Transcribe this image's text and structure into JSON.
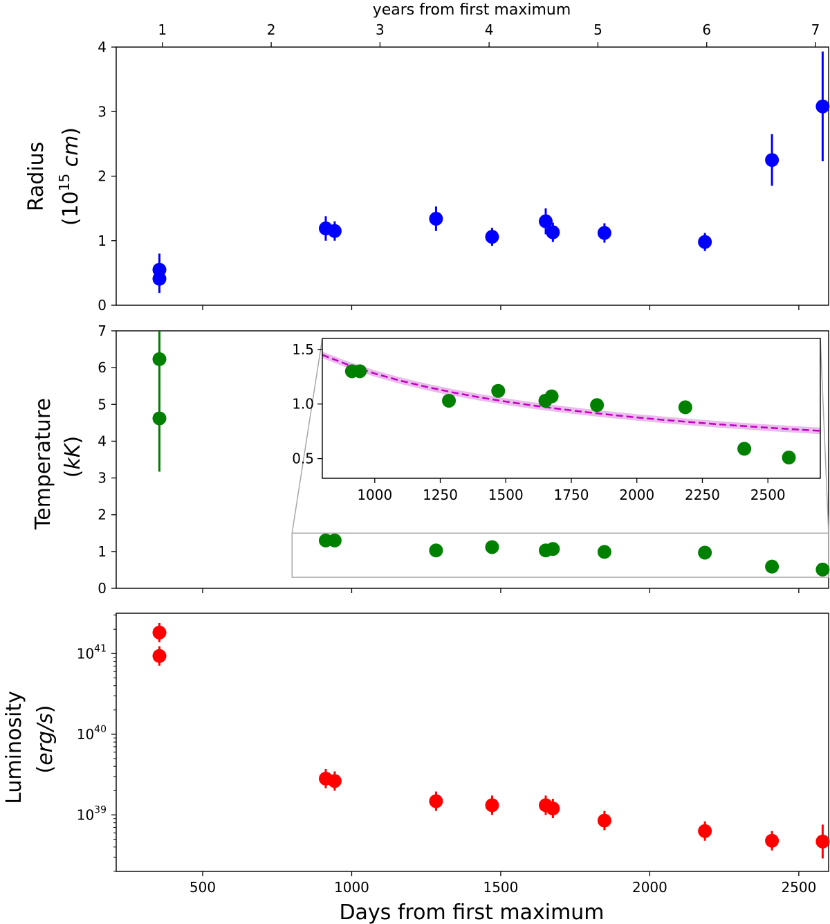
{
  "chart_data": [
    {
      "id": "radius",
      "type": "scatter",
      "ylabel_line1": "Radius",
      "ylabel_line2_prefix": "(10",
      "ylabel_line2_exp": "15",
      "ylabel_line2_unit": "cm",
      "ylabel_line2_suffix": ")",
      "ylim": [
        0,
        4
      ],
      "yticks": [
        0,
        1,
        2,
        3,
        4
      ],
      "ytick_labels": [
        "0",
        "1",
        "2",
        "3",
        "4"
      ],
      "color": "#0000ff",
      "points": [
        {
          "x": 355,
          "y": 0.55,
          "yerr": 0.25
        },
        {
          "x": 355,
          "y": 0.41,
          "yerr": 0.22
        },
        {
          "x": 913,
          "y": 1.19,
          "yerr": 0.19
        },
        {
          "x": 943,
          "y": 1.15,
          "yerr": 0.15
        },
        {
          "x": 1283,
          "y": 1.34,
          "yerr": 0.19
        },
        {
          "x": 1471,
          "y": 1.06,
          "yerr": 0.14
        },
        {
          "x": 1651,
          "y": 1.3,
          "yerr": 0.2
        },
        {
          "x": 1675,
          "y": 1.13,
          "yerr": 0.15
        },
        {
          "x": 1848,
          "y": 1.12,
          "yerr": 0.15
        },
        {
          "x": 2185,
          "y": 0.98,
          "yerr": 0.14
        },
        {
          "x": 2410,
          "y": 2.25,
          "yerr": 0.4
        },
        {
          "x": 2580,
          "y": 3.08,
          "yerr": 0.85
        }
      ]
    },
    {
      "id": "temperature",
      "type": "scatter",
      "ylabel_line1": "Temperature",
      "ylabel_line2_prefix": "(",
      "ylabel_line2_unit": "kK",
      "ylabel_line2_suffix": ")",
      "ylim": [
        0,
        7
      ],
      "yticks": [
        0,
        1,
        2,
        3,
        4,
        5,
        6,
        7
      ],
      "ytick_labels": [
        "0",
        "1",
        "2",
        "3",
        "4",
        "5",
        "6",
        "7"
      ],
      "color": "#008000",
      "points": [
        {
          "x": 355,
          "y": 6.23,
          "yerr": 0.9
        },
        {
          "x": 355,
          "y": 4.62,
          "yerr": 1.45
        },
        {
          "x": 913,
          "y": 1.3,
          "yerr": 0
        },
        {
          "x": 943,
          "y": 1.3,
          "yerr": 0
        },
        {
          "x": 1283,
          "y": 1.03,
          "yerr": 0
        },
        {
          "x": 1471,
          "y": 1.12,
          "yerr": 0
        },
        {
          "x": 1651,
          "y": 1.03,
          "yerr": 0
        },
        {
          "x": 1675,
          "y": 1.07,
          "yerr": 0
        },
        {
          "x": 1848,
          "y": 0.99,
          "yerr": 0
        },
        {
          "x": 2185,
          "y": 0.97,
          "yerr": 0
        },
        {
          "x": 2410,
          "y": 0.59,
          "yerr": 0
        },
        {
          "x": 2580,
          "y": 0.51,
          "yerr": 0
        }
      ],
      "zoom_region": {
        "xlim": [
          800,
          2700
        ],
        "ylim": [
          0.3,
          1.5
        ]
      },
      "inset": {
        "xlim": [
          800,
          2700
        ],
        "ylim": [
          0.32,
          1.6
        ],
        "xticks": [
          1000,
          1250,
          1500,
          1750,
          2000,
          2250,
          2500
        ],
        "xtick_labels": [
          "1000",
          "1250",
          "1500",
          "1750",
          "2000",
          "2250",
          "2500"
        ],
        "yticks": [
          0.5,
          1.0,
          1.5
        ],
        "ytick_labels": [
          "0.5",
          "1.0",
          "1.5"
        ],
        "fit_color": "#c000c0",
        "fit_band_color": "#e8b4ea",
        "fit_curve": [
          {
            "x": 800,
            "y": 1.45
          },
          {
            "x": 900,
            "y": 1.357
          },
          {
            "x": 1000,
            "y": 1.279
          },
          {
            "x": 1100,
            "y": 1.212
          },
          {
            "x": 1200,
            "y": 1.155
          },
          {
            "x": 1300,
            "y": 1.105
          },
          {
            "x": 1400,
            "y": 1.061
          },
          {
            "x": 1500,
            "y": 1.022
          },
          {
            "x": 1600,
            "y": 0.987
          },
          {
            "x": 1700,
            "y": 0.956
          },
          {
            "x": 1800,
            "y": 0.927
          },
          {
            "x": 1900,
            "y": 0.901
          },
          {
            "x": 2000,
            "y": 0.877
          },
          {
            "x": 2100,
            "y": 0.855
          },
          {
            "x": 2200,
            "y": 0.835
          },
          {
            "x": 2300,
            "y": 0.816
          },
          {
            "x": 2400,
            "y": 0.799
          },
          {
            "x": 2500,
            "y": 0.783
          },
          {
            "x": 2600,
            "y": 0.768
          },
          {
            "x": 2700,
            "y": 0.754
          }
        ],
        "fit_band_halfwidth": 0.03
      }
    },
    {
      "id": "luminosity",
      "type": "scatter",
      "yscale": "log",
      "ylabel_line1": "Luminosity",
      "ylabel_line2_prefix": "(",
      "ylabel_line2_unit": "erg/s",
      "ylabel_line2_suffix": ")",
      "ylim_log10": [
        38.3,
        41.5
      ],
      "yticks_exp": [
        39,
        40,
        41
      ],
      "ytick_base": "10",
      "ytick_exps": [
        "39",
        "40",
        "41"
      ],
      "color": "#ff0000",
      "points": [
        {
          "x": 355,
          "y_log10": 41.26,
          "err_log10": 0.12
        },
        {
          "x": 355,
          "y_log10": 40.97,
          "err_log10": 0.12
        },
        {
          "x": 913,
          "y_log10": 39.45,
          "err_log10": 0.12
        },
        {
          "x": 943,
          "y_log10": 39.42,
          "err_log10": 0.12
        },
        {
          "x": 1283,
          "y_log10": 39.17,
          "err_log10": 0.12
        },
        {
          "x": 1471,
          "y_log10": 39.12,
          "err_log10": 0.12
        },
        {
          "x": 1651,
          "y_log10": 39.12,
          "err_log10": 0.12
        },
        {
          "x": 1675,
          "y_log10": 39.08,
          "err_log10": 0.12
        },
        {
          "x": 1848,
          "y_log10": 38.93,
          "err_log10": 0.12
        },
        {
          "x": 2185,
          "y_log10": 38.8,
          "err_log10": 0.12
        },
        {
          "x": 2410,
          "y_log10": 38.68,
          "err_log10": 0.12
        },
        {
          "x": 2580,
          "y_log10": 38.67,
          "err_log10": 0.21
        }
      ]
    }
  ],
  "shared_x": {
    "xlim": [
      210,
      2600
    ],
    "xlabel": "Days from first maximum",
    "xticks": [
      500,
      1000,
      1500,
      2000,
      2500
    ],
    "xtick_labels": [
      "500",
      "1000",
      "1500",
      "2000",
      "2500"
    ]
  },
  "top_axis": {
    "title": "years from first maximum",
    "ticks_days": [
      365,
      730,
      1095,
      1461,
      1826,
      2191,
      2556
    ],
    "tick_labels": [
      "1",
      "2",
      "3",
      "4",
      "5",
      "6",
      "7"
    ]
  }
}
